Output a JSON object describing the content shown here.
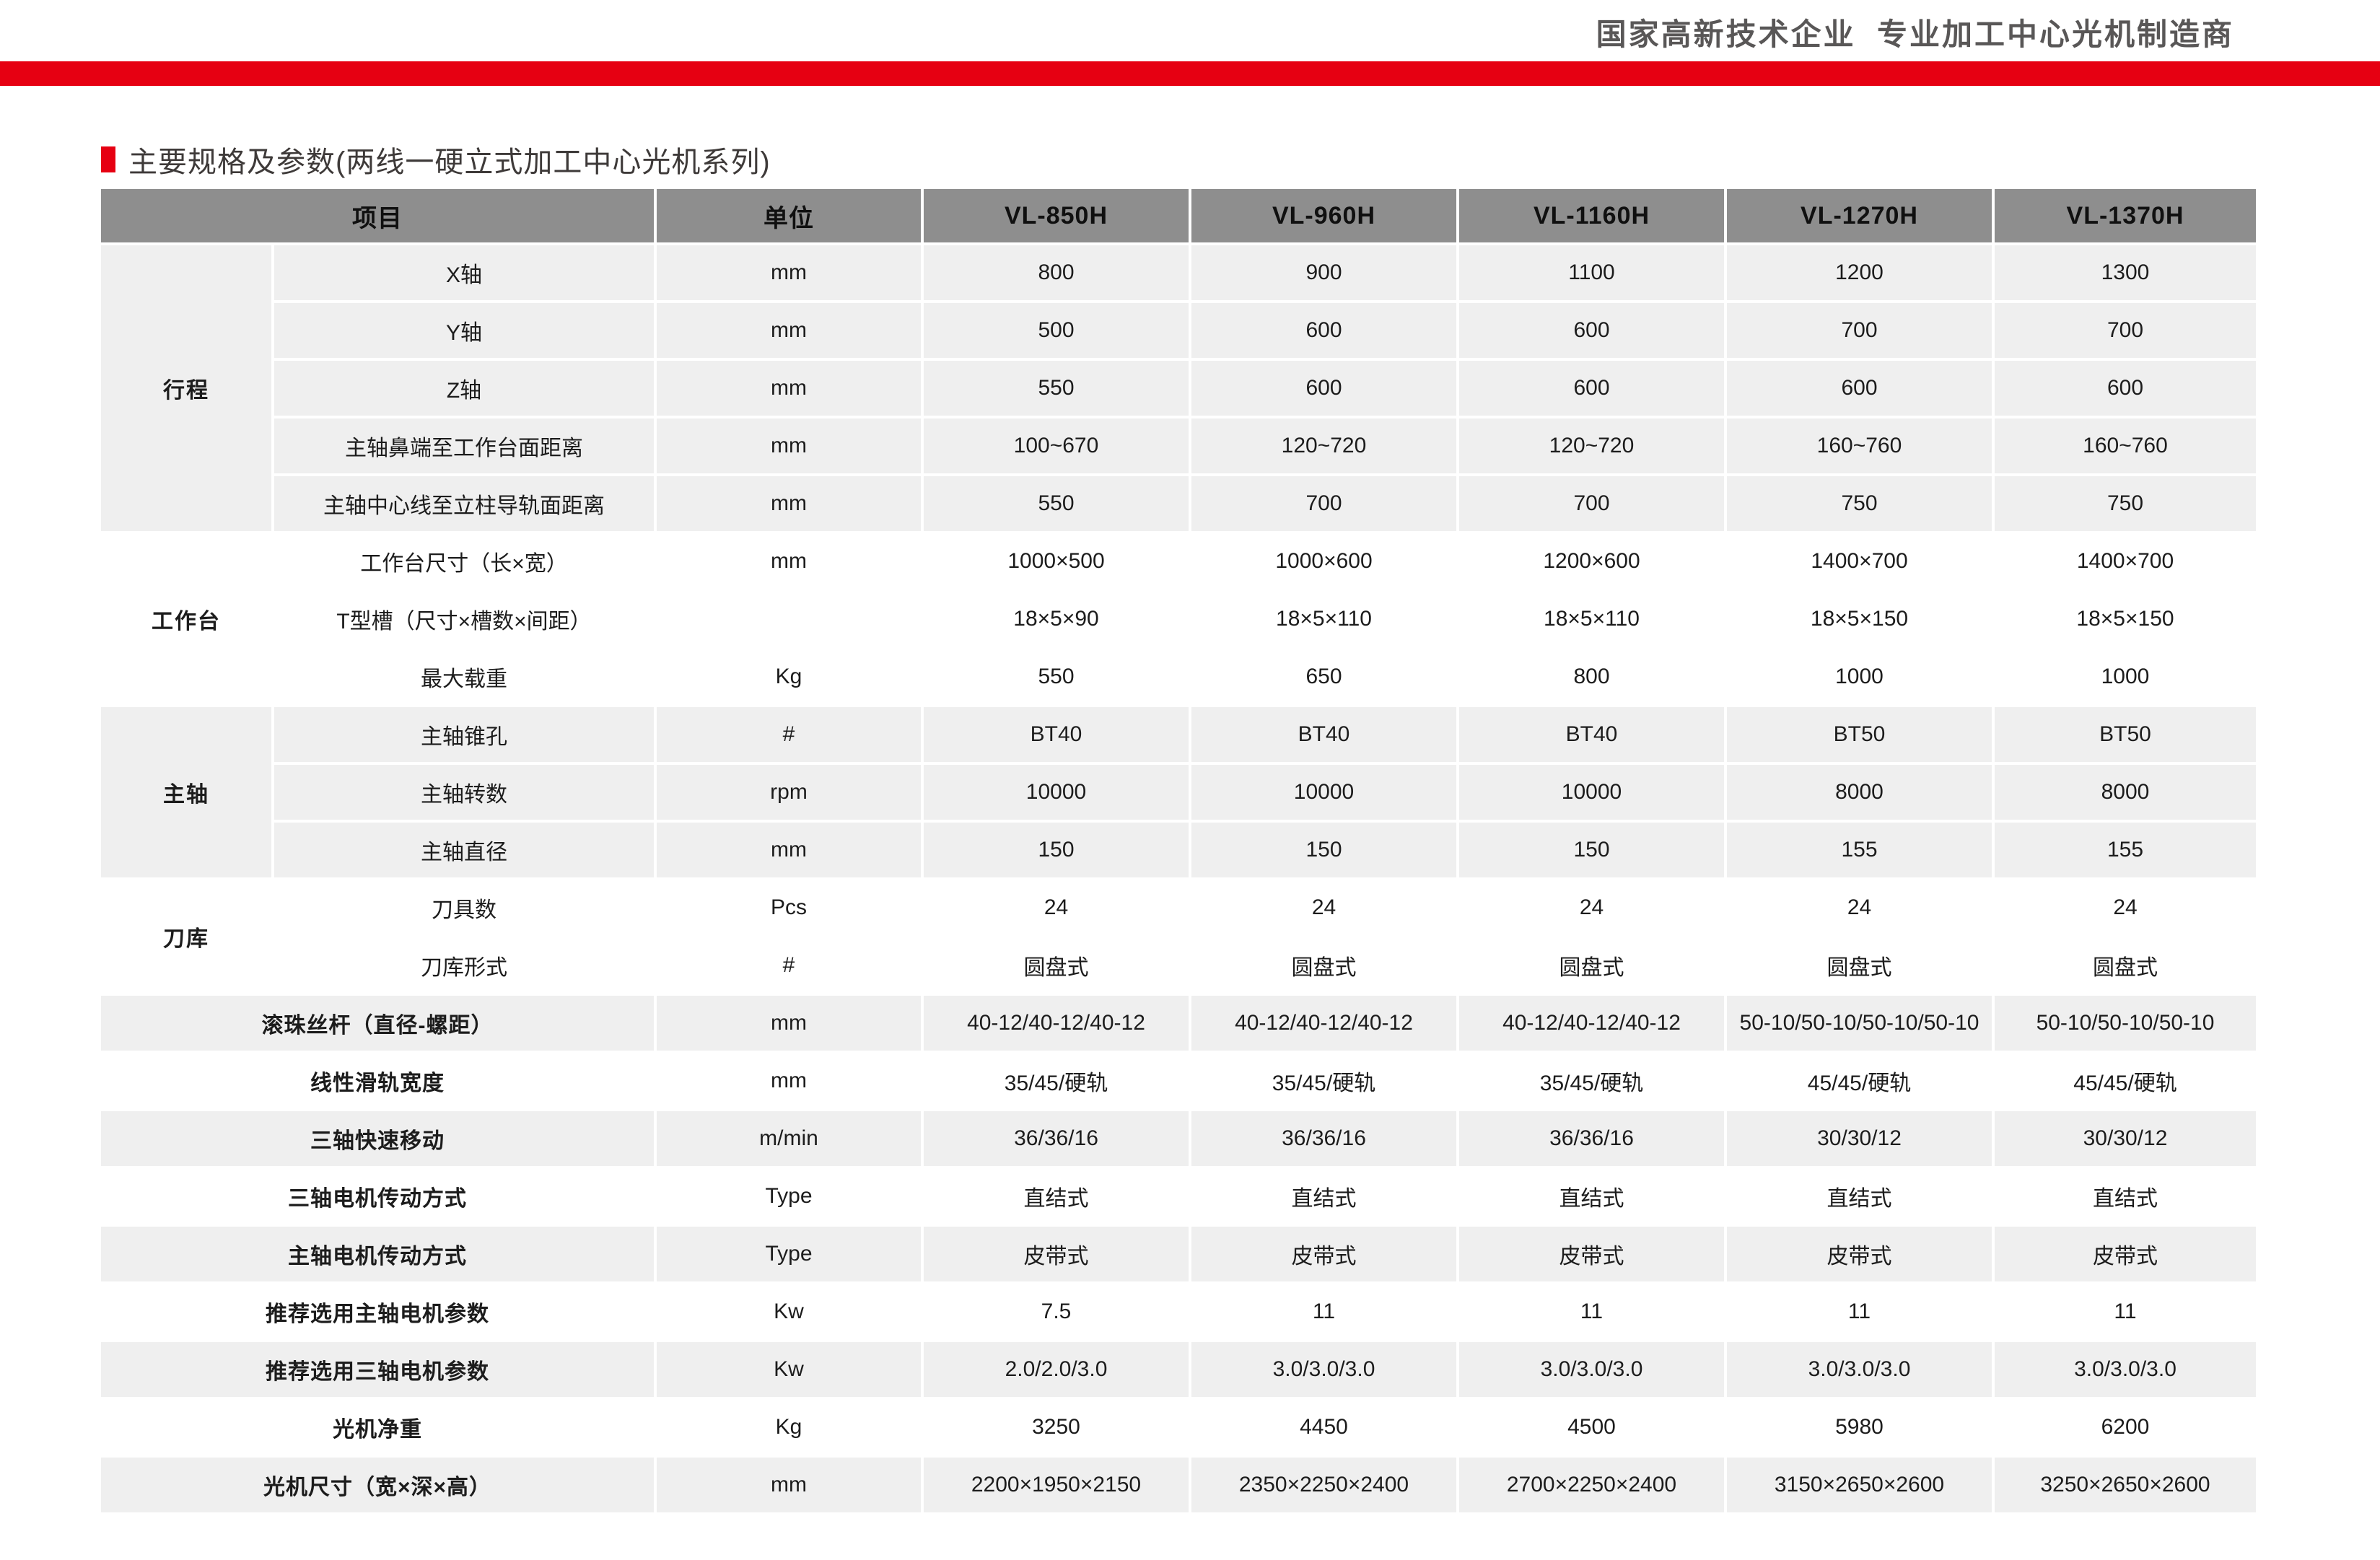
{
  "page": {
    "top_banner": "国家高新技术企业  专业加工中心光机制造商",
    "section_title": "主要规格及参数(两线一硬立式加工中心光机系列)"
  },
  "colors": {
    "accent_red": "#e60012",
    "header_bg": "#8e8e8e",
    "stripe_bg": "#efefef",
    "banner_text": "#595757"
  },
  "table": {
    "columns": [
      "项目",
      "单位",
      "VL-850H",
      "VL-960H",
      "VL-1160H",
      "VL-1270H",
      "VL-1370H"
    ],
    "rows": [
      {
        "group": "行程",
        "group_span": 5,
        "shaded": true,
        "label": "X轴",
        "unit": "mm",
        "values": [
          "800",
          "900",
          "1100",
          "1200",
          "1300"
        ]
      },
      {
        "shaded": true,
        "label": "Y轴",
        "unit": "mm",
        "values": [
          "500",
          "600",
          "600",
          "700",
          "700"
        ]
      },
      {
        "shaded": true,
        "label": "Z轴",
        "unit": "mm",
        "values": [
          "550",
          "600",
          "600",
          "600",
          "600"
        ]
      },
      {
        "shaded": true,
        "label": "主轴鼻端至工作台面距离",
        "unit": "mm",
        "values": [
          "100~670",
          "120~720",
          "120~720",
          "160~760",
          "160~760"
        ]
      },
      {
        "shaded": true,
        "label": "主轴中心线至立柱导轨面距离",
        "unit": "mm",
        "values": [
          "550",
          "700",
          "700",
          "750",
          "750"
        ]
      },
      {
        "group": "工作台",
        "group_span": 3,
        "shaded": false,
        "label": "工作台尺寸（长×宽）",
        "unit": "mm",
        "values": [
          "1000×500",
          "1000×600",
          "1200×600",
          "1400×700",
          "1400×700"
        ]
      },
      {
        "shaded": false,
        "label": "T型槽（尺寸×槽数×间距）",
        "unit": "",
        "values": [
          "18×5×90",
          "18×5×110",
          "18×5×110",
          "18×5×150",
          "18×5×150"
        ]
      },
      {
        "shaded": false,
        "label": "最大载重",
        "unit": "Kg",
        "values": [
          "550",
          "650",
          "800",
          "1000",
          "1000"
        ]
      },
      {
        "group": "主轴",
        "group_span": 3,
        "shaded": true,
        "label": "主轴锥孔",
        "unit": "#",
        "values": [
          "BT40",
          "BT40",
          "BT40",
          "BT50",
          "BT50"
        ]
      },
      {
        "shaded": true,
        "label": "主轴转数",
        "unit": "rpm",
        "values": [
          "10000",
          "10000",
          "10000",
          "8000",
          "8000"
        ]
      },
      {
        "shaded": true,
        "label": "主轴直径",
        "unit": "mm",
        "values": [
          "150",
          "150",
          "150",
          "155",
          "155"
        ]
      },
      {
        "group": "刀库",
        "group_span": 2,
        "shaded": false,
        "label": "刀具数",
        "unit": "Pcs",
        "values": [
          "24",
          "24",
          "24",
          "24",
          "24"
        ]
      },
      {
        "shaded": false,
        "label": "刀库形式",
        "unit": "#",
        "values": [
          "圆盘式",
          "圆盘式",
          "圆盘式",
          "圆盘式",
          "圆盘式"
        ]
      },
      {
        "wide": true,
        "shaded": true,
        "label": "滚珠丝杆（直径-螺距）",
        "unit": "mm",
        "values": [
          "40-12/40-12/40-12",
          "40-12/40-12/40-12",
          "40-12/40-12/40-12",
          "50-10/50-10/50-10/50-10",
          "50-10/50-10/50-10"
        ]
      },
      {
        "wide": true,
        "shaded": false,
        "label": "线性滑轨宽度",
        "unit": "mm",
        "values": [
          "35/45/硬轨",
          "35/45/硬轨",
          "35/45/硬轨",
          "45/45/硬轨",
          "45/45/硬轨"
        ]
      },
      {
        "wide": true,
        "shaded": true,
        "label": "三轴快速移动",
        "unit": "m/min",
        "values": [
          "36/36/16",
          "36/36/16",
          "36/36/16",
          "30/30/12",
          "30/30/12"
        ]
      },
      {
        "wide": true,
        "shaded": false,
        "label": "三轴电机传动方式",
        "unit": "Type",
        "values": [
          "直结式",
          "直结式",
          "直结式",
          "直结式",
          "直结式"
        ]
      },
      {
        "wide": true,
        "shaded": true,
        "label": "主轴电机传动方式",
        "unit": "Type",
        "values": [
          "皮带式",
          "皮带式",
          "皮带式",
          "皮带式",
          "皮带式"
        ]
      },
      {
        "wide": true,
        "shaded": false,
        "label": "推荐选用主轴电机参数",
        "unit": "Kw",
        "values": [
          "7.5",
          "11",
          "11",
          "11",
          "11"
        ]
      },
      {
        "wide": true,
        "shaded": true,
        "label": "推荐选用三轴电机参数",
        "unit": "Kw",
        "values": [
          "2.0/2.0/3.0",
          "3.0/3.0/3.0",
          "3.0/3.0/3.0",
          "3.0/3.0/3.0",
          "3.0/3.0/3.0"
        ]
      },
      {
        "wide": true,
        "shaded": false,
        "label": "光机净重",
        "unit": "Kg",
        "values": [
          "3250",
          "4450",
          "4500",
          "5980",
          "6200"
        ]
      },
      {
        "wide": true,
        "shaded": true,
        "label": "光机尺寸（宽×深×高）",
        "unit": "mm",
        "values": [
          "2200×1950×2150",
          "2350×2250×2400",
          "2700×2250×2400",
          "3150×2650×2600",
          "3250×2650×2600"
        ]
      }
    ]
  }
}
